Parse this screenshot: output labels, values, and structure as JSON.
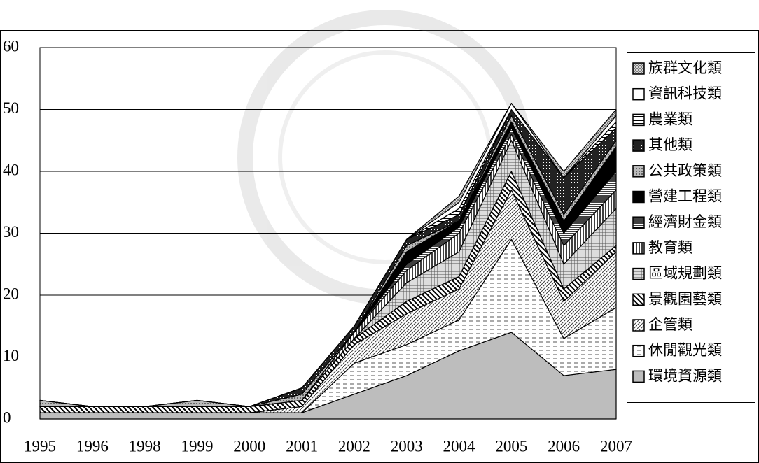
{
  "chart_data": {
    "type": "stacked_area",
    "categories": [
      "1995",
      "1996",
      "1998",
      "1999",
      "2000",
      "2001",
      "2002",
      "2003",
      "2004",
      "2005",
      "2006",
      "2007"
    ],
    "ylim": [
      0,
      60
    ],
    "yticks": [
      0,
      10,
      20,
      30,
      40,
      50,
      60
    ],
    "grid": true,
    "legend": "right",
    "series": [
      {
        "name": "環境資源類",
        "pattern": "solid-gray",
        "values": [
          1,
          1,
          1,
          1,
          1,
          1,
          4,
          7,
          11,
          14,
          7,
          8
        ]
      },
      {
        "name": "休閒觀光類",
        "pattern": "dashes",
        "values": [
          0,
          0,
          0,
          0,
          0,
          0,
          5,
          5,
          5,
          15,
          6,
          10
        ]
      },
      {
        "name": "企管類",
        "pattern": "thin-diagonal",
        "values": [
          0,
          0,
          0,
          0,
          0,
          1,
          3,
          5,
          5,
          8,
          6,
          9
        ]
      },
      {
        "name": "景觀園藝類",
        "pattern": "thick-diagonal",
        "values": [
          1,
          1,
          1,
          1,
          1,
          1,
          1,
          2,
          2,
          3,
          2,
          1
        ]
      },
      {
        "name": "區域規劃類",
        "pattern": "grid",
        "values": [
          0,
          0,
          0,
          0,
          0,
          0,
          0,
          3,
          4,
          5,
          4,
          6
        ]
      },
      {
        "name": "教育類",
        "pattern": "vertical",
        "values": [
          0,
          0,
          0,
          0,
          0,
          0,
          1,
          2,
          3,
          1,
          3,
          3
        ]
      },
      {
        "name": "經濟財金類",
        "pattern": "horizontal-dark",
        "values": [
          0,
          0,
          0,
          0,
          0,
          0,
          0,
          1,
          1,
          1,
          2,
          3
        ]
      },
      {
        "name": "營建工程類",
        "pattern": "solid-black",
        "values": [
          0,
          0,
          0,
          0,
          0,
          0,
          0,
          2,
          1,
          1,
          2,
          4
        ]
      },
      {
        "name": "公共政策類",
        "pattern": "gray-dots",
        "values": [
          1,
          0,
          0,
          1,
          0,
          1,
          0,
          1,
          0,
          1,
          1,
          1
        ]
      },
      {
        "name": "其他類",
        "pattern": "dark-dots",
        "values": [
          0,
          0,
          0,
          0,
          0,
          1,
          1,
          1,
          1,
          1,
          6,
          2
        ]
      },
      {
        "name": "農業類",
        "pattern": "horizontal",
        "values": [
          0,
          0,
          0,
          0,
          0,
          0,
          0,
          0,
          1,
          0,
          0,
          1
        ]
      },
      {
        "name": "資訊科技類",
        "pattern": "white",
        "values": [
          0,
          0,
          0,
          0,
          0,
          0,
          0,
          0,
          1,
          1,
          0,
          1
        ]
      },
      {
        "name": "族群文化類",
        "pattern": "dense-hatch",
        "values": [
          0,
          0,
          0,
          0,
          0,
          0,
          0,
          0,
          1,
          0,
          1,
          1
        ]
      }
    ]
  }
}
